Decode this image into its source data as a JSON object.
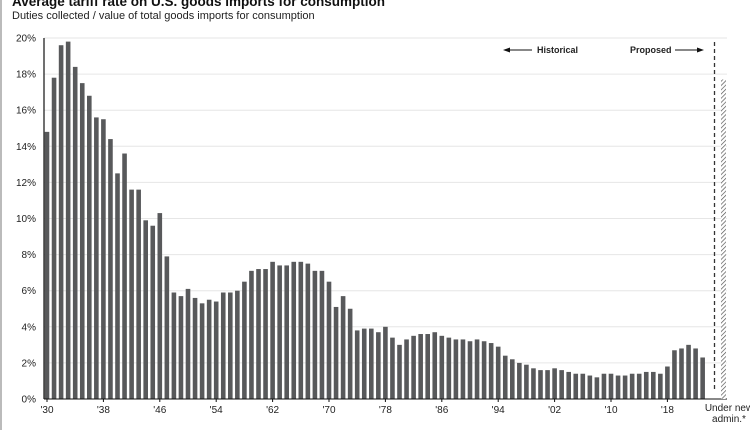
{
  "chart_data": {
    "type": "bar",
    "title": "Average tariff rate on U.S. goods imports for consumption",
    "subtitle": "Duties collected / value of total goods imports for consumption",
    "xlabel": "",
    "ylabel": "",
    "ylim": [
      0,
      20
    ],
    "y_ticks": [
      "0%",
      "2%",
      "4%",
      "6%",
      "8%",
      "10%",
      "12%",
      "14%",
      "16%",
      "18%",
      "20%"
    ],
    "x_tick_labels": [
      "'30",
      "'38",
      "'46",
      "'54",
      "'62",
      "'70",
      "'78",
      "'86",
      "'94",
      "'02",
      "'10",
      "'18"
    ],
    "x_tick_years": [
      1930,
      1938,
      1946,
      1954,
      1962,
      1970,
      1978,
      1986,
      1994,
      2002,
      2010,
      2018
    ],
    "grid": true,
    "bar_color": "#58595b",
    "years": [
      1930,
      1931,
      1932,
      1933,
      1934,
      1935,
      1936,
      1937,
      1938,
      1939,
      1940,
      1941,
      1942,
      1943,
      1944,
      1945,
      1946,
      1947,
      1948,
      1949,
      1950,
      1951,
      1952,
      1953,
      1954,
      1955,
      1956,
      1957,
      1958,
      1959,
      1960,
      1961,
      1962,
      1963,
      1964,
      1965,
      1966,
      1967,
      1968,
      1969,
      1970,
      1971,
      1972,
      1973,
      1974,
      1975,
      1976,
      1977,
      1978,
      1979,
      1980,
      1981,
      1982,
      1983,
      1984,
      1985,
      1986,
      1987,
      1988,
      1989,
      1990,
      1991,
      1992,
      1993,
      1994,
      1995,
      1996,
      1997,
      1998,
      1999,
      2000,
      2001,
      2002,
      2003,
      2004,
      2005,
      2006,
      2007,
      2008,
      2009,
      2010,
      2011,
      2012,
      2013,
      2014,
      2015,
      2016,
      2017,
      2018,
      2019,
      2020,
      2021,
      2022,
      2023
    ],
    "values": [
      14.8,
      17.8,
      19.6,
      19.8,
      18.4,
      17.5,
      16.8,
      15.6,
      15.5,
      14.4,
      12.5,
      13.6,
      11.6,
      11.6,
      9.9,
      9.6,
      10.3,
      7.9,
      5.9,
      5.7,
      6.1,
      5.6,
      5.3,
      5.5,
      5.4,
      5.9,
      5.9,
      6.0,
      6.5,
      7.1,
      7.2,
      7.2,
      7.6,
      7.4,
      7.4,
      7.6,
      7.6,
      7.5,
      7.1,
      7.1,
      6.5,
      5.1,
      5.7,
      5.0,
      3.8,
      3.9,
      3.9,
      3.7,
      4.0,
      3.4,
      3.0,
      3.3,
      3.5,
      3.6,
      3.6,
      3.7,
      3.5,
      3.4,
      3.3,
      3.3,
      3.2,
      3.3,
      3.2,
      3.1,
      2.9,
      2.4,
      2.2,
      2.0,
      1.9,
      1.7,
      1.6,
      1.6,
      1.7,
      1.6,
      1.5,
      1.4,
      1.4,
      1.3,
      1.2,
      1.4,
      1.4,
      1.3,
      1.3,
      1.4,
      1.4,
      1.5,
      1.5,
      1.4,
      1.8,
      2.7,
      2.8,
      3.0,
      2.8,
      2.3
    ],
    "proposed": {
      "label_line1": "Under new",
      "label_line2": "admin.*",
      "value": 17.7,
      "style": "hatched"
    },
    "annotations": {
      "historical": "Historical",
      "proposed": "Proposed"
    }
  }
}
